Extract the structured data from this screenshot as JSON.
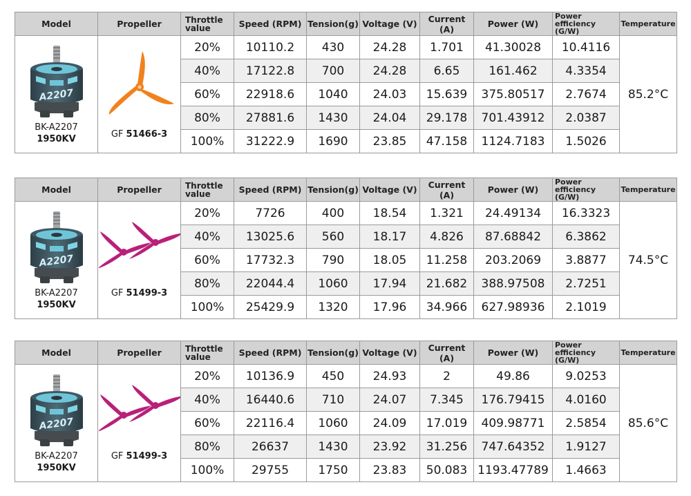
{
  "headers": {
    "model": "Model",
    "propeller": "Propeller",
    "throttle": "Throttle value",
    "speed": "Speed (RPM)",
    "tension": "Tension(g)",
    "voltage": "Voltage (V)",
    "current": "Current (A)",
    "power": "Power (W)",
    "efficiency": "Power efficiency (G/W)",
    "temperature": "Temperature"
  },
  "tables": [
    {
      "motor_name": "BK-A2207",
      "motor_kv": "1950KV",
      "prop_prefix": "GF",
      "prop_code": "51466-3",
      "prop_color": "#f0821e",
      "temperature": "85.2°C",
      "rows": [
        {
          "throttle": "20%",
          "speed": "10110.2",
          "tension": "430",
          "voltage": "24.28",
          "current": "1.701",
          "power": "41.30028",
          "efficiency": "10.4116"
        },
        {
          "throttle": "40%",
          "speed": "17122.8",
          "tension": "700",
          "voltage": "24.28",
          "current": "6.65",
          "power": "161.462",
          "efficiency": "4.3354"
        },
        {
          "throttle": "60%",
          "speed": "22918.6",
          "tension": "1040",
          "voltage": "24.03",
          "current": "15.639",
          "power": "375.80517",
          "efficiency": "2.7674"
        },
        {
          "throttle": "80%",
          "speed": "27881.6",
          "tension": "1430",
          "voltage": "24.04",
          "current": "29.178",
          "power": "701.43912",
          "efficiency": "2.0387"
        },
        {
          "throttle": "100%",
          "speed": "31222.9",
          "tension": "1690",
          "voltage": "23.85",
          "current": "47.158",
          "power": "1124.7183",
          "efficiency": "1.5026"
        }
      ]
    },
    {
      "motor_name": "BK-A2207",
      "motor_kv": "1950KV",
      "prop_prefix": "GF",
      "prop_code": "51499-3",
      "prop_color": "#b8207a",
      "temperature": "74.5°C",
      "rows": [
        {
          "throttle": "20%",
          "speed": "7726",
          "tension": "400",
          "voltage": "18.54",
          "current": "1.321",
          "power": "24.49134",
          "efficiency": "16.3323"
        },
        {
          "throttle": "40%",
          "speed": "13025.6",
          "tension": "560",
          "voltage": "18.17",
          "current": "4.826",
          "power": "87.68842",
          "efficiency": "6.3862"
        },
        {
          "throttle": "60%",
          "speed": "17732.3",
          "tension": "790",
          "voltage": "18.05",
          "current": "11.258",
          "power": "203.2069",
          "efficiency": "3.8877"
        },
        {
          "throttle": "80%",
          "speed": "22044.4",
          "tension": "1060",
          "voltage": "17.94",
          "current": "21.682",
          "power": "388.97508",
          "efficiency": "2.7251"
        },
        {
          "throttle": "100%",
          "speed": "25429.9",
          "tension": "1320",
          "voltage": "17.96",
          "current": "34.966",
          "power": "627.98936",
          "efficiency": "2.1019"
        }
      ]
    },
    {
      "motor_name": "BK-A2207",
      "motor_kv": "1950KV",
      "prop_prefix": "GF",
      "prop_code": "51499-3",
      "prop_color": "#b8207a",
      "temperature": "85.6°C",
      "rows": [
        {
          "throttle": "20%",
          "speed": "10136.9",
          "tension": "450",
          "voltage": "24.93",
          "current": "2",
          "power": "49.86",
          "efficiency": "9.0253"
        },
        {
          "throttle": "40%",
          "speed": "16440.6",
          "tension": "710",
          "voltage": "24.07",
          "current": "7.345",
          "power": "176.79415",
          "efficiency": "4.0160"
        },
        {
          "throttle": "60%",
          "speed": "22116.4",
          "tension": "1060",
          "voltage": "24.09",
          "current": "17.019",
          "power": "409.98771",
          "efficiency": "2.5854"
        },
        {
          "throttle": "80%",
          "speed": "26637",
          "tension": "1430",
          "voltage": "23.92",
          "current": "31.256",
          "power": "747.64352",
          "efficiency": "1.9127"
        },
        {
          "throttle": "100%",
          "speed": "29755",
          "tension": "1750",
          "voltage": "23.83",
          "current": "50.083",
          "power": "1193.47789",
          "efficiency": "1.4663"
        }
      ]
    }
  ]
}
